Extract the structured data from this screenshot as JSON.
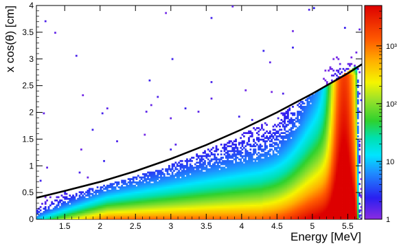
{
  "chart_data": {
    "type": "heatmap",
    "title": "",
    "xlabel": "Energy [MeV]",
    "ylabel": "x cos(θ) [cm]",
    "xlim": [
      1.1,
      5.7
    ],
    "ylim": [
      0,
      4
    ],
    "x_ticks": [
      "1.5",
      "2",
      "2.5",
      "3",
      "3.5",
      "4",
      "4.5",
      "5",
      "5.5"
    ],
    "x_tick_values": [
      1.5,
      2,
      2.5,
      3,
      3.5,
      4,
      4.5,
      5,
      5.5
    ],
    "y_ticks": [
      "0",
      "0.5",
      "1",
      "1.5",
      "2",
      "2.5",
      "3",
      "3.5",
      "4"
    ],
    "y_tick_values": [
      0,
      0.5,
      1,
      1.5,
      2,
      2.5,
      3,
      3.5,
      4
    ],
    "colorbar": {
      "scale": "log",
      "range": [
        1,
        5000
      ],
      "ticks": [
        {
          "value": 1,
          "label": "1"
        },
        {
          "value": 10,
          "label": "10"
        },
        {
          "value": 100,
          "label": "10²"
        },
        {
          "value": 1000,
          "label": "10³"
        }
      ]
    },
    "cut_curve": {
      "type": "line",
      "color": "#000000",
      "points": [
        [
          1.1,
          0.4
        ],
        [
          1.5,
          0.53
        ],
        [
          2.0,
          0.7
        ],
        [
          2.5,
          0.9
        ],
        [
          3.0,
          1.13
        ],
        [
          3.5,
          1.39
        ],
        [
          4.0,
          1.68
        ],
        [
          4.5,
          2.0
        ],
        [
          5.0,
          2.35
        ],
        [
          5.5,
          2.73
        ],
        [
          5.7,
          2.9
        ]
      ]
    },
    "grid": false,
    "legend": "none"
  }
}
